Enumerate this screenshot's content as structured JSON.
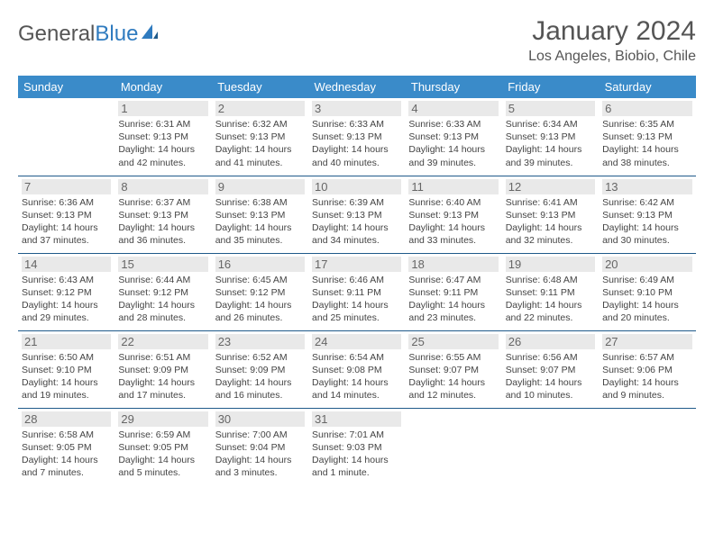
{
  "brand": {
    "part1": "General",
    "part2": "Blue"
  },
  "title": "January 2024",
  "location": "Los Angeles, Biobio, Chile",
  "weekdays": [
    "Sunday",
    "Monday",
    "Tuesday",
    "Wednesday",
    "Thursday",
    "Friday",
    "Saturday"
  ],
  "colors": {
    "header_bg": "#3a8bc9",
    "border": "#1f5a8a",
    "daynum_bg": "#e9e9e9",
    "text": "#444"
  },
  "layout": {
    "start_weekday": 1,
    "days_in_month": 31
  },
  "days": [
    {
      "n": 1,
      "sunrise": "6:31 AM",
      "sunset": "9:13 PM",
      "daylight": "14 hours and 42 minutes."
    },
    {
      "n": 2,
      "sunrise": "6:32 AM",
      "sunset": "9:13 PM",
      "daylight": "14 hours and 41 minutes."
    },
    {
      "n": 3,
      "sunrise": "6:33 AM",
      "sunset": "9:13 PM",
      "daylight": "14 hours and 40 minutes."
    },
    {
      "n": 4,
      "sunrise": "6:33 AM",
      "sunset": "9:13 PM",
      "daylight": "14 hours and 39 minutes."
    },
    {
      "n": 5,
      "sunrise": "6:34 AM",
      "sunset": "9:13 PM",
      "daylight": "14 hours and 39 minutes."
    },
    {
      "n": 6,
      "sunrise": "6:35 AM",
      "sunset": "9:13 PM",
      "daylight": "14 hours and 38 minutes."
    },
    {
      "n": 7,
      "sunrise": "6:36 AM",
      "sunset": "9:13 PM",
      "daylight": "14 hours and 37 minutes."
    },
    {
      "n": 8,
      "sunrise": "6:37 AM",
      "sunset": "9:13 PM",
      "daylight": "14 hours and 36 minutes."
    },
    {
      "n": 9,
      "sunrise": "6:38 AM",
      "sunset": "9:13 PM",
      "daylight": "14 hours and 35 minutes."
    },
    {
      "n": 10,
      "sunrise": "6:39 AM",
      "sunset": "9:13 PM",
      "daylight": "14 hours and 34 minutes."
    },
    {
      "n": 11,
      "sunrise": "6:40 AM",
      "sunset": "9:13 PM",
      "daylight": "14 hours and 33 minutes."
    },
    {
      "n": 12,
      "sunrise": "6:41 AM",
      "sunset": "9:13 PM",
      "daylight": "14 hours and 32 minutes."
    },
    {
      "n": 13,
      "sunrise": "6:42 AM",
      "sunset": "9:13 PM",
      "daylight": "14 hours and 30 minutes."
    },
    {
      "n": 14,
      "sunrise": "6:43 AM",
      "sunset": "9:12 PM",
      "daylight": "14 hours and 29 minutes."
    },
    {
      "n": 15,
      "sunrise": "6:44 AM",
      "sunset": "9:12 PM",
      "daylight": "14 hours and 28 minutes."
    },
    {
      "n": 16,
      "sunrise": "6:45 AM",
      "sunset": "9:12 PM",
      "daylight": "14 hours and 26 minutes."
    },
    {
      "n": 17,
      "sunrise": "6:46 AM",
      "sunset": "9:11 PM",
      "daylight": "14 hours and 25 minutes."
    },
    {
      "n": 18,
      "sunrise": "6:47 AM",
      "sunset": "9:11 PM",
      "daylight": "14 hours and 23 minutes."
    },
    {
      "n": 19,
      "sunrise": "6:48 AM",
      "sunset": "9:11 PM",
      "daylight": "14 hours and 22 minutes."
    },
    {
      "n": 20,
      "sunrise": "6:49 AM",
      "sunset": "9:10 PM",
      "daylight": "14 hours and 20 minutes."
    },
    {
      "n": 21,
      "sunrise": "6:50 AM",
      "sunset": "9:10 PM",
      "daylight": "14 hours and 19 minutes."
    },
    {
      "n": 22,
      "sunrise": "6:51 AM",
      "sunset": "9:09 PM",
      "daylight": "14 hours and 17 minutes."
    },
    {
      "n": 23,
      "sunrise": "6:52 AM",
      "sunset": "9:09 PM",
      "daylight": "14 hours and 16 minutes."
    },
    {
      "n": 24,
      "sunrise": "6:54 AM",
      "sunset": "9:08 PM",
      "daylight": "14 hours and 14 minutes."
    },
    {
      "n": 25,
      "sunrise": "6:55 AM",
      "sunset": "9:07 PM",
      "daylight": "14 hours and 12 minutes."
    },
    {
      "n": 26,
      "sunrise": "6:56 AM",
      "sunset": "9:07 PM",
      "daylight": "14 hours and 10 minutes."
    },
    {
      "n": 27,
      "sunrise": "6:57 AM",
      "sunset": "9:06 PM",
      "daylight": "14 hours and 9 minutes."
    },
    {
      "n": 28,
      "sunrise": "6:58 AM",
      "sunset": "9:05 PM",
      "daylight": "14 hours and 7 minutes."
    },
    {
      "n": 29,
      "sunrise": "6:59 AM",
      "sunset": "9:05 PM",
      "daylight": "14 hours and 5 minutes."
    },
    {
      "n": 30,
      "sunrise": "7:00 AM",
      "sunset": "9:04 PM",
      "daylight": "14 hours and 3 minutes."
    },
    {
      "n": 31,
      "sunrise": "7:01 AM",
      "sunset": "9:03 PM",
      "daylight": "14 hours and 1 minute."
    }
  ],
  "labels": {
    "sunrise": "Sunrise:",
    "sunset": "Sunset:",
    "daylight": "Daylight:"
  }
}
